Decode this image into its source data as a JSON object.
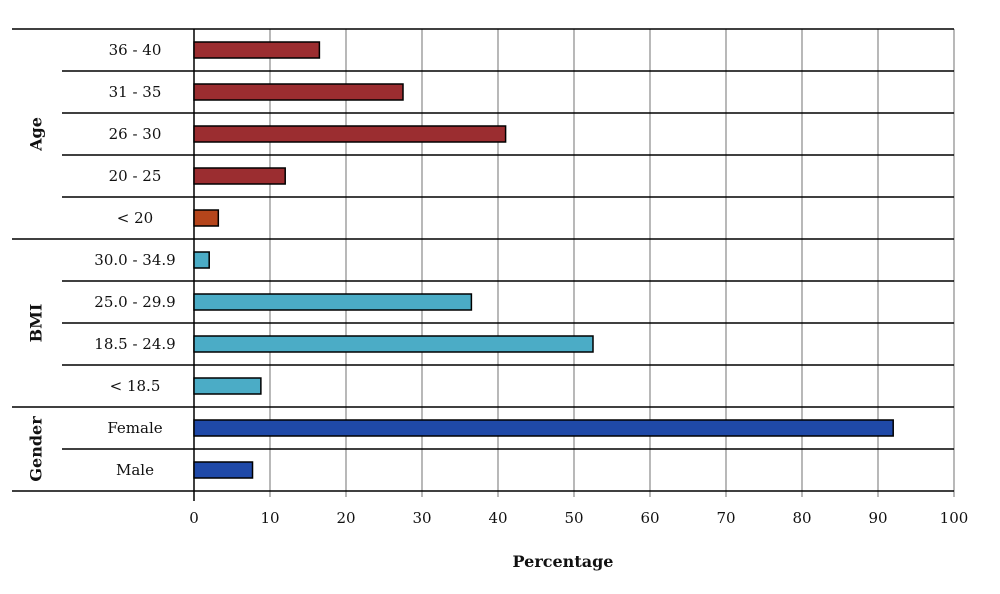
{
  "chart_data": {
    "type": "bar",
    "orientation": "horizontal",
    "title": "",
    "xlabel": "Percentage",
    "ylabel": "",
    "xlim": [
      0,
      100
    ],
    "xticks": [
      0,
      10,
      20,
      30,
      40,
      50,
      60,
      70,
      80,
      90,
      100
    ],
    "grid": true,
    "legend": "none",
    "groups": [
      {
        "name": "Age",
        "items": [
          {
            "label": "36 - 40",
            "value": 16.5,
            "color": "#9b2d30"
          },
          {
            "label": "31 - 35",
            "value": 27.5,
            "color": "#9b2d30"
          },
          {
            "label": "26 - 30",
            "value": 41,
            "color": "#9b2d30"
          },
          {
            "label": "20 - 25",
            "value": 12,
            "color": "#9b2d30"
          },
          {
            "label": "< 20",
            "value": 3.2,
            "color": "#b5451b"
          }
        ]
      },
      {
        "name": "BMI",
        "items": [
          {
            "label": "30.0 - 34.9",
            "value": 2,
            "color": "#4bacc6"
          },
          {
            "label": "25.0 - 29.9",
            "value": 36.5,
            "color": "#4bacc6"
          },
          {
            "label": "18.5 - 24.9",
            "value": 52.5,
            "color": "#4bacc6"
          },
          {
            "label": "< 18.5",
            "value": 8.8,
            "color": "#4bacc6"
          }
        ]
      },
      {
        "name": "Gender",
        "items": [
          {
            "label": "Female",
            "value": 92,
            "color": "#1f49a8"
          },
          {
            "label": "Male",
            "value": 7.7,
            "color": "#1f49a8"
          }
        ]
      }
    ]
  }
}
